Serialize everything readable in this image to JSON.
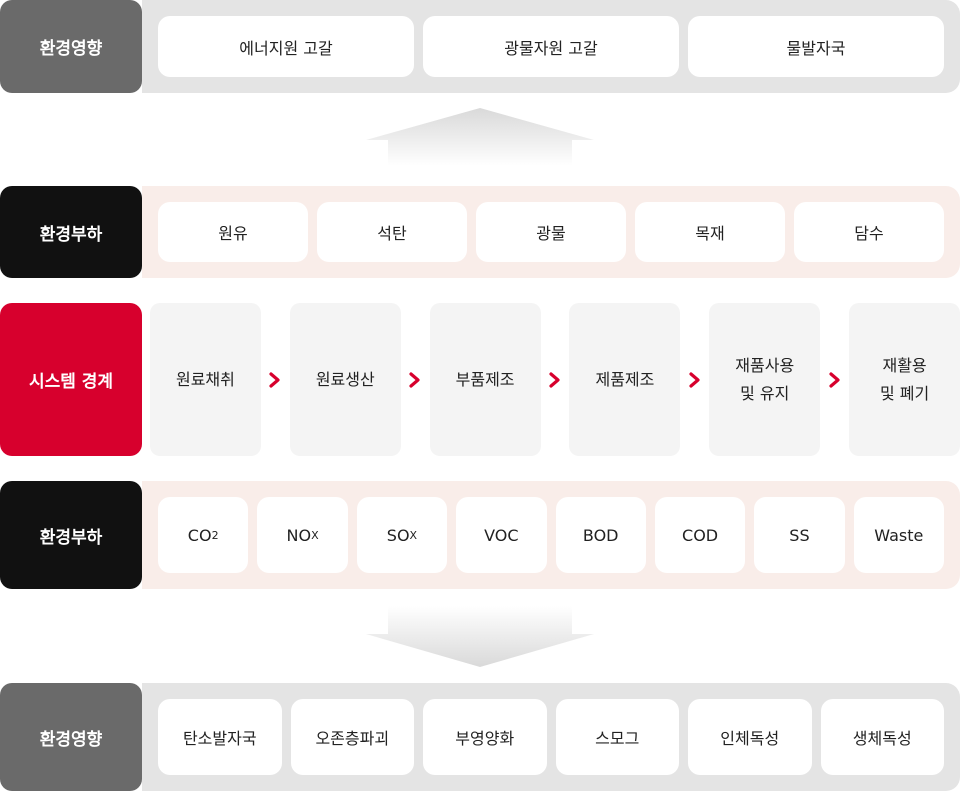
{
  "impact_top": {
    "label": "환경영향",
    "items": [
      "에너지원 고갈",
      "광물자원 고갈",
      "물발자국"
    ]
  },
  "load_input": {
    "label": "환경부하",
    "items": [
      "원유",
      "석탄",
      "광물",
      "목재",
      "담수"
    ]
  },
  "system": {
    "label": "시스템 경계",
    "stages": [
      "원료채취",
      "원료생산",
      "부품제조",
      "제품제조",
      "재품사용\n및 유지",
      "재활용\n및 폐기"
    ]
  },
  "load_output": {
    "label": "환경부하",
    "items": [
      {
        "main": "CO",
        "sub": "2"
      },
      {
        "main": "NO",
        "sub": "X"
      },
      {
        "main": "SO",
        "sub": "X"
      },
      {
        "main": "VOC",
        "sub": ""
      },
      {
        "main": "BOD",
        "sub": ""
      },
      {
        "main": "COD",
        "sub": ""
      },
      {
        "main": "SS",
        "sub": ""
      },
      {
        "main": "Waste",
        "sub": ""
      }
    ]
  },
  "impact_bottom": {
    "label": "환경영향",
    "items": [
      "탄소발자국",
      "오존층파괴",
      "부영양화",
      "스모그",
      "인체독성",
      "생체독성"
    ]
  },
  "colors": {
    "accent_red": "#d7002d",
    "dark_gray": "#6a6a6a",
    "black": "#111111",
    "band_gray": "#e4e4e4",
    "band_pink": "#f9ede9"
  },
  "icons": {
    "stage_separator": "chevron-right-icon",
    "flow_up": "arrow-up-icon",
    "flow_down": "arrow-down-icon"
  }
}
